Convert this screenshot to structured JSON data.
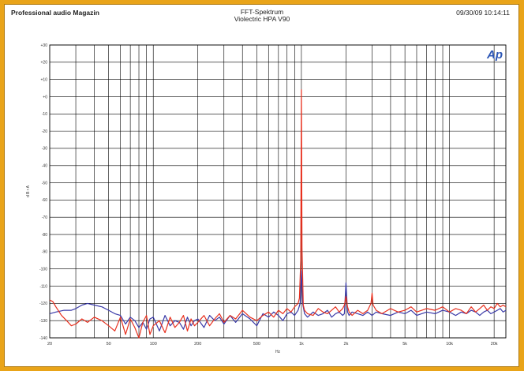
{
  "header": {
    "left": "Professional audio Magazin",
    "title": "FFT-Spektrum",
    "subtitle": "Violectric HPA V90",
    "timestamp": "09/30/09 10:14:11"
  },
  "logo_text": "Ap",
  "colors": {
    "background": "#e9a419",
    "panel": "#ffffff",
    "grid": "#000000",
    "series_blue": "#3a3aa8",
    "series_red": "#e8301e",
    "logo": "#2c56b5"
  },
  "chart_data": {
    "type": "line",
    "title": "FFT-Spektrum",
    "subtitle": "Violectric HPA V90",
    "xlabel": "Hz",
    "ylabel": "d B r A",
    "xscale": "log",
    "xlim": [
      20,
      24000
    ],
    "ylim": [
      -140,
      30
    ],
    "yticks": [
      30,
      20,
      10,
      0,
      -10,
      -20,
      -30,
      -40,
      -50,
      -60,
      -70,
      -80,
      -90,
      -100,
      -110,
      -120,
      -130,
      -140
    ],
    "ytick_labels": [
      "+30",
      "+20",
      "+10",
      "+0",
      "-10",
      "-20",
      "-30",
      "-40",
      "-50",
      "-60",
      "-70",
      "-80",
      "-90",
      "-100",
      "-110",
      "-120",
      "-130",
      "-140"
    ],
    "xticks": [
      20,
      50,
      100,
      200,
      500,
      1000,
      2000,
      5000,
      10000,
      20000
    ],
    "xtick_labels": [
      "20",
      "50",
      "100",
      "200",
      "500",
      "1k",
      "2k",
      "5k",
      "10k",
      "20k"
    ],
    "grid": true,
    "series": [
      {
        "color": "#3a3aa8",
        "x": [
          20,
          22,
          25,
          28,
          30,
          33,
          36,
          40,
          45,
          50,
          55,
          60,
          65,
          70,
          75,
          80,
          85,
          90,
          95,
          100,
          110,
          120,
          130,
          140,
          150,
          160,
          170,
          180,
          190,
          200,
          220,
          240,
          260,
          280,
          300,
          330,
          360,
          400,
          450,
          500,
          550,
          600,
          650,
          700,
          750,
          800,
          850,
          900,
          950,
          980,
          1000,
          1020,
          1050,
          1100,
          1200,
          1300,
          1400,
          1500,
          1600,
          1700,
          1800,
          1900,
          1950,
          2000,
          2050,
          2100,
          2200,
          2400,
          2600,
          2800,
          3000,
          3200,
          3500,
          4000,
          4500,
          5000,
          5500,
          6000,
          7000,
          8000,
          9000,
          10000,
          11000,
          12000,
          13000,
          14000,
          15000,
          16000,
          17000,
          18000,
          19000,
          20000,
          21000,
          22000,
          23000,
          24000
        ],
        "y": [
          -126,
          -125,
          -124,
          -124,
          -123,
          -121,
          -120,
          -121,
          -122,
          -124,
          -126,
          -127,
          -132,
          -128,
          -130,
          -134,
          -131,
          -135,
          -129,
          -128,
          -136,
          -127,
          -133,
          -130,
          -131,
          -135,
          -128,
          -133,
          -130,
          -129,
          -134,
          -127,
          -130,
          -128,
          -132,
          -127,
          -131,
          -126,
          -129,
          -133,
          -126,
          -128,
          -125,
          -127,
          -130,
          -126,
          -125,
          -127,
          -124,
          -120,
          -101,
          -120,
          -126,
          -128,
          -125,
          -127,
          -126,
          -124,
          -128,
          -126,
          -125,
          -127,
          -126,
          -108,
          -125,
          -127,
          -125,
          -126,
          -127,
          -125,
          -127,
          -125,
          -126,
          -127,
          -125,
          -126,
          -124,
          -127,
          -125,
          -126,
          -124,
          -125,
          -127,
          -125,
          -126,
          -124,
          -125,
          -127,
          -125,
          -124,
          -126,
          -125,
          -124,
          -123,
          -125,
          -124
        ]
      },
      {
        "color": "#e8301e",
        "x": [
          20,
          21,
          22,
          24,
          26,
          28,
          30,
          33,
          36,
          40,
          45,
          50,
          55,
          60,
          65,
          70,
          75,
          80,
          85,
          90,
          95,
          100,
          110,
          120,
          130,
          140,
          150,
          160,
          170,
          180,
          190,
          200,
          220,
          240,
          260,
          280,
          300,
          330,
          360,
          400,
          450,
          500,
          550,
          600,
          650,
          700,
          750,
          800,
          850,
          900,
          950,
          970,
          990,
          1000,
          1010,
          1030,
          1050,
          1100,
          1200,
          1300,
          1400,
          1500,
          1600,
          1700,
          1800,
          1900,
          1950,
          2000,
          2050,
          2100,
          2200,
          2400,
          2600,
          2800,
          2950,
          3000,
          3050,
          3200,
          3500,
          4000,
          4500,
          5000,
          5500,
          6000,
          7000,
          8000,
          9000,
          10000,
          11000,
          12000,
          13000,
          14000,
          15000,
          16000,
          17000,
          18000,
          19000,
          20000,
          21000,
          22000,
          23000,
          24000
        ],
        "y": [
          -118,
          -119,
          -122,
          -127,
          -130,
          -133,
          -132,
          -129,
          -131,
          -128,
          -130,
          -133,
          -136,
          -128,
          -138,
          -129,
          -134,
          -140,
          -131,
          -127,
          -138,
          -133,
          -130,
          -137,
          -128,
          -134,
          -131,
          -127,
          -136,
          -129,
          -133,
          -131,
          -127,
          -133,
          -129,
          -126,
          -131,
          -127,
          -129,
          -124,
          -128,
          -130,
          -127,
          -125,
          -128,
          -124,
          -126,
          -123,
          -125,
          -122,
          -120,
          -117,
          -95,
          4,
          -88,
          -121,
          -124,
          -126,
          -127,
          -123,
          -125,
          -126,
          -124,
          -122,
          -125,
          -123,
          -121,
          -116,
          -122,
          -125,
          -127,
          -124,
          -126,
          -124,
          -120,
          -114,
          -121,
          -124,
          -126,
          -123,
          -125,
          -124,
          -122,
          -125,
          -123,
          -124,
          -122,
          -125,
          -123,
          -124,
          -126,
          -122,
          -125,
          -123,
          -121,
          -124,
          -122,
          -123,
          -120,
          -122,
          -121,
          -122
        ]
      }
    ]
  }
}
